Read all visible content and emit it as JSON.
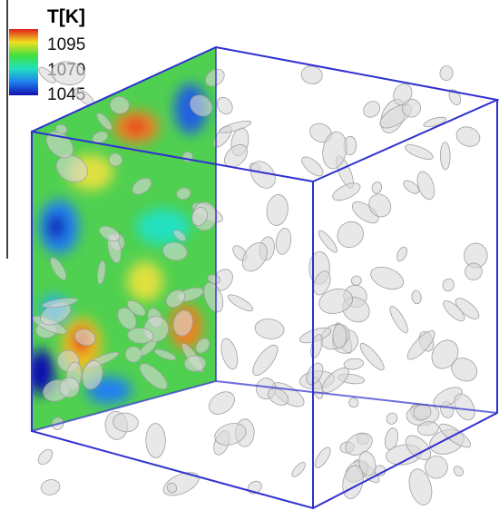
{
  "colorbar": {
    "title": "T[K]",
    "ticks": [
      1095,
      1070,
      1045
    ]
  }
}
